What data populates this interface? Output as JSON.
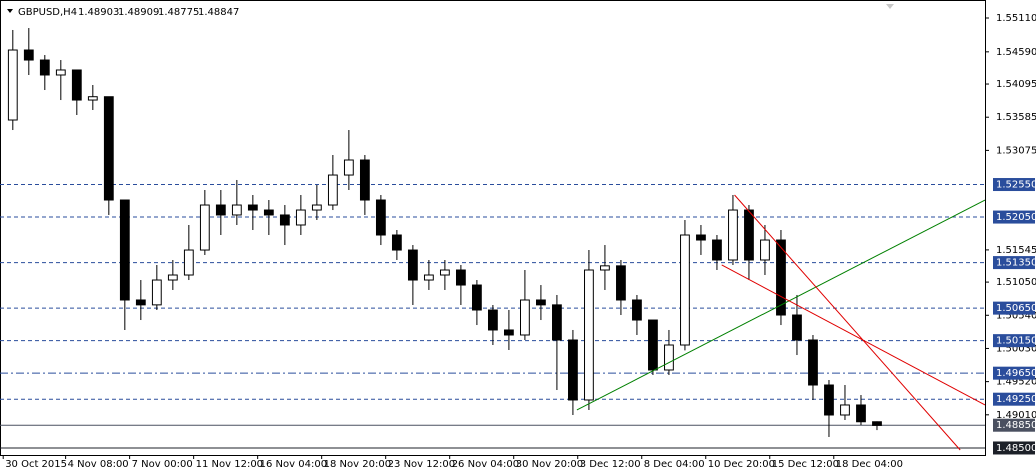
{
  "chart_data": {
    "type": "candlestick",
    "symbol": "GBPUSD,H4",
    "ylim": [
      1.48392,
      1.5531
    ],
    "xlim": [
      -0.8,
      60.75
    ],
    "yticks": [
      {
        "value": 1.5511,
        "label": "1.55110"
      },
      {
        "value": 1.5459,
        "label": "1.54590"
      },
      1.54095,
      1.53585,
      1.53075,
      1.51545,
      {
        "value": 1.5105,
        "label": "1.51050"
      },
      {
        "value": 1.5054,
        "label": "1.50540"
      },
      {
        "value": 1.5003,
        "label": "1.50030"
      },
      {
        "value": 1.4952,
        "label": "1.49520"
      },
      {
        "value": 1.4901,
        "label": "1.49010"
      }
    ],
    "xticks": [
      {
        "value": -0.6,
        "label": "30 Oct 2015"
      },
      {
        "value": 3.3,
        "label": "4 Nov 08:00"
      },
      {
        "value": 7.3,
        "label": "7 Nov 00:00"
      },
      {
        "value": 11.3,
        "label": "11 Nov 12:00"
      },
      {
        "value": 15.3,
        "label": "16 Nov 04:00"
      },
      {
        "value": 19.3,
        "label": "18 Nov 20:00"
      },
      {
        "value": 23.3,
        "label": "23 Nov 12:00"
      },
      {
        "value": 27.3,
        "label": "26 Nov 04:00"
      },
      {
        "value": 31.3,
        "label": "30 Nov 20:00"
      },
      {
        "value": 35.3,
        "label": "3 Dec 12:00"
      },
      {
        "value": 39.3,
        "label": "8 Dec 04:00"
      },
      {
        "value": 43.3,
        "label": "10 Dec 20:00"
      },
      {
        "value": 47.3,
        "label": "15 Dec 12:00"
      },
      {
        "value": 51.3,
        "label": "18 Dec 04:00"
      }
    ],
    "candles": [
      [
        1.53542,
        1.54926,
        1.53388,
        1.54618
      ],
      [
        1.54618,
        1.54956,
        1.54234,
        1.54464
      ],
      [
        1.54464,
        1.54541,
        1.54003,
        1.54234
      ],
      [
        1.54234,
        1.54464,
        1.53849,
        1.54311
      ],
      [
        1.54311,
        1.54311,
        1.53619,
        1.53849
      ],
      [
        1.53849,
        1.5408,
        1.53696,
        1.539
      ],
      [
        1.539,
        1.539,
        1.52082,
        1.52312
      ],
      [
        1.52312,
        1.52312,
        1.50314,
        1.50775
      ],
      [
        1.50775,
        1.51082,
        1.50467,
        1.507
      ],
      [
        1.507,
        1.51313,
        1.50621,
        1.51082
      ],
      [
        1.51082,
        1.5139,
        1.50929,
        1.51159
      ],
      [
        1.51159,
        1.51928,
        1.51082,
        1.51543
      ],
      [
        1.51543,
        1.52466,
        1.51467,
        1.52235
      ],
      [
        1.52235,
        1.52466,
        1.51774,
        1.52082
      ],
      [
        1.52082,
        1.5262,
        1.51928,
        1.52235
      ],
      [
        1.52235,
        1.52389,
        1.51851,
        1.52158
      ],
      [
        1.52158,
        1.52312,
        1.51774,
        1.52082
      ],
      [
        1.52082,
        1.52235,
        1.5162,
        1.51928
      ],
      [
        1.51928,
        1.52389,
        1.51774,
        1.52158
      ],
      [
        1.52158,
        1.52543,
        1.52005,
        1.52235
      ],
      [
        1.52235,
        1.53004,
        1.52158,
        1.52696
      ],
      [
        1.52696,
        1.53388,
        1.52466,
        1.52927
      ],
      [
        1.52927,
        1.53004,
        1.52082,
        1.52312
      ],
      [
        1.52312,
        1.52389,
        1.5162,
        1.51774
      ],
      [
        1.51774,
        1.51851,
        1.5139,
        1.51543
      ],
      [
        1.51543,
        1.5162,
        1.50698,
        1.51082
      ],
      [
        1.51082,
        1.5139,
        1.50929,
        1.51159
      ],
      [
        1.51159,
        1.5139,
        1.50929,
        1.51236
      ],
      [
        1.51236,
        1.51313,
        1.50698,
        1.51005
      ],
      [
        1.51005,
        1.51082,
        1.5039,
        1.50621
      ],
      [
        1.50621,
        1.50698,
        1.50083,
        1.50314
      ],
      [
        1.50314,
        1.50621,
        1.50006,
        1.50237
      ],
      [
        1.50237,
        1.51236,
        1.5016,
        1.50775
      ],
      [
        1.50775,
        1.51005,
        1.50467,
        1.507
      ],
      [
        1.507,
        1.50852,
        1.49391,
        1.5016
      ],
      [
        1.5016,
        1.50314,
        1.49007,
        1.49238
      ],
      [
        1.49238,
        1.51543,
        1.49084,
        1.51236
      ],
      [
        1.51236,
        1.5162,
        1.50929,
        1.513
      ],
      [
        1.513,
        1.5139,
        1.50544,
        1.50775
      ],
      [
        1.50775,
        1.50852,
        1.50237,
        1.50467
      ],
      [
        1.50467,
        1.50467,
        1.49622,
        1.49699
      ],
      [
        1.49699,
        1.50314,
        1.49622,
        1.50083
      ],
      [
        1.50083,
        1.52005,
        1.5,
        1.51774
      ],
      [
        1.51774,
        1.51928,
        1.51467,
        1.51697
      ],
      [
        1.51697,
        1.51774,
        1.51236,
        1.5139
      ],
      [
        1.5139,
        1.52389,
        1.51313,
        1.52158
      ],
      [
        1.52158,
        1.52235,
        1.51082,
        1.5139
      ],
      [
        1.5139,
        1.51928,
        1.51159,
        1.51697
      ],
      [
        1.51697,
        1.51851,
        1.5039,
        1.50544
      ],
      [
        1.50544,
        1.50852,
        1.49929,
        1.5016
      ],
      [
        1.5016,
        1.50237,
        1.49238,
        1.49468
      ],
      [
        1.49468,
        1.49545,
        1.48669,
        1.49007
      ],
      [
        1.49007,
        1.49468,
        1.4893,
        1.49161
      ],
      [
        1.49161,
        1.49314,
        1.48853,
        1.48903
      ],
      [
        1.48903,
        1.48909,
        1.48775,
        1.48847
      ]
    ],
    "bull_color": "#ffffff",
    "bear_color": "#000000",
    "candle_outline": "#000000",
    "hlines": [
      {
        "value": 1.5255,
        "label": "1.52550",
        "style": "dashed",
        "color": "#2a4d9c"
      },
      {
        "value": 1.5205,
        "label": "1.52050",
        "style": "dashed",
        "color": "#2a4d9c"
      },
      {
        "value": 1.5135,
        "label": "1.51350",
        "style": "dashed",
        "color": "#2a4d9c"
      },
      {
        "value": 1.5065,
        "label": "1.50650",
        "style": "dashed",
        "color": "#2a4d9c"
      },
      {
        "value": 1.5015,
        "label": "1.50150",
        "style": "dashed",
        "color": "#2a4d9c"
      },
      {
        "value": 1.4965,
        "label": "1.49650",
        "style": "dashdot",
        "color": "#2a4d9c"
      },
      {
        "value": 1.4925,
        "label": "1.49250",
        "style": "dashed",
        "color": "#2a4d9c"
      },
      {
        "value": 1.4885,
        "label": "1.48850",
        "style": "solid",
        "color": "#4a5060"
      },
      {
        "value": 1.485,
        "label": "1.48500",
        "style": "solid",
        "color": "#1c2028"
      }
    ],
    "trendlines": [
      {
        "x": [
          35.25,
          60.75
        ],
        "y": [
          1.49084,
          1.52312
        ],
        "color": "#008000"
      },
      {
        "x": [
          45.1,
          59.2
        ],
        "y": [
          1.52389,
          1.48469
        ],
        "color": "#e00000"
      },
      {
        "x": [
          44.3,
          60.75
        ],
        "y": [
          1.51313,
          1.49161
        ],
        "color": "#e00000"
      }
    ]
  }
}
